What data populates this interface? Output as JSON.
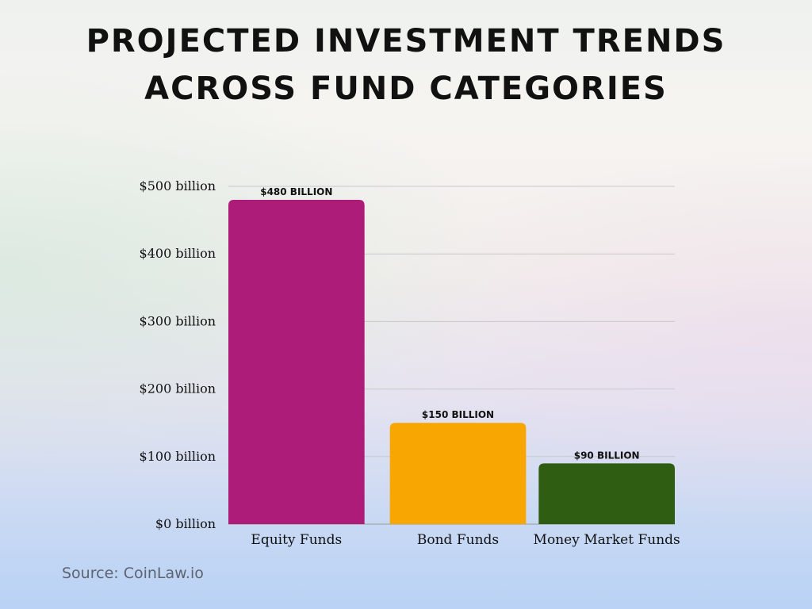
{
  "title": "Projected Investment Trends Across Fund Categories",
  "source": "Source: CoinLaw.io",
  "chart_data": {
    "type": "bar",
    "categories": [
      "Equity Funds",
      "Bond Funds",
      "Money Market Funds"
    ],
    "values": [
      480,
      150,
      90
    ],
    "data_labels": [
      "$480 billion",
      "$150 billion",
      "$90 billion"
    ],
    "colors": [
      "#ad1c78",
      "#f8a602",
      "#2f5e13"
    ],
    "yticks": [
      0,
      100,
      200,
      300,
      400,
      500
    ],
    "ytick_labels": [
      "$0 billion",
      "$100 billion",
      "$200 billion",
      "$300 billion",
      "$400 billion",
      "$500 billion"
    ],
    "ylim": [
      0,
      500
    ],
    "grid": true,
    "legend": "none"
  }
}
